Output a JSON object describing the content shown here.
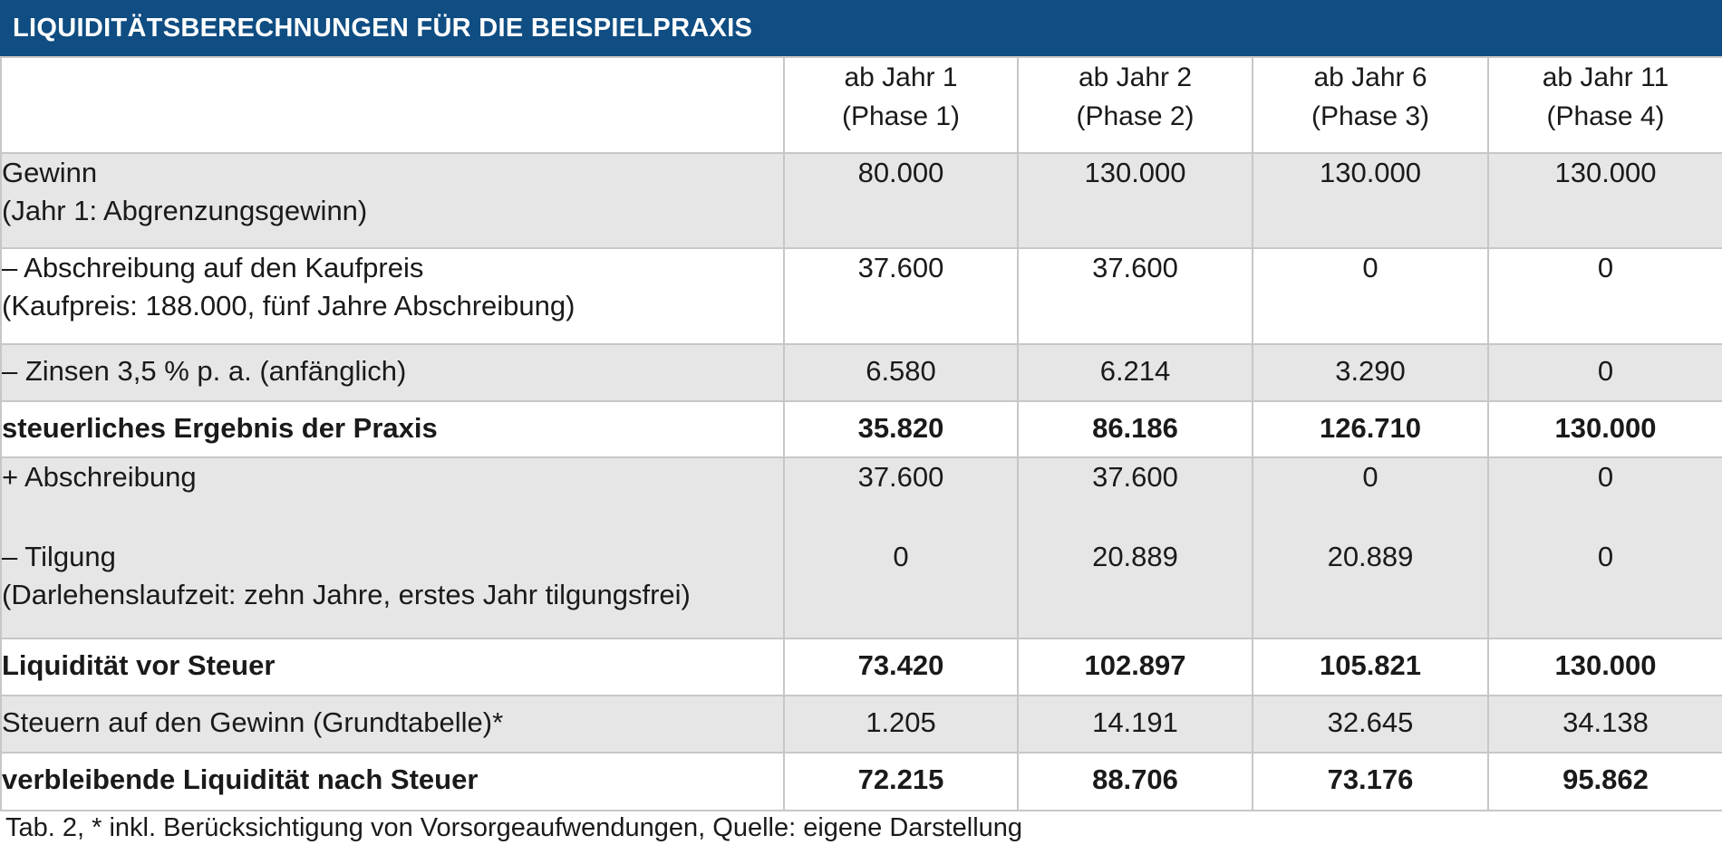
{
  "title": "LIQUIDITÄTSBERECHNUNGEN FÜR DIE BEISPIELPRAXIS",
  "columns": [
    {
      "line1": "ab Jahr 1",
      "line2": "(Phase 1)"
    },
    {
      "line1": "ab Jahr 2",
      "line2": "(Phase 2)"
    },
    {
      "line1": "ab Jahr 6",
      "line2": "(Phase 3)"
    },
    {
      "line1": "ab Jahr 11",
      "line2": "(Phase 4)"
    }
  ],
  "rows": {
    "gewinn": {
      "label": "Gewinn",
      "sublabel": "(Jahr 1: Abgrenzungsgewinn)",
      "values": [
        "80.000",
        "130.000",
        "130.000",
        "130.000"
      ]
    },
    "abschreibung_kaufpreis": {
      "label": "– Abschreibung auf den Kaufpreis",
      "sublabel": "(Kaufpreis: 188.000, fünf Jahre Abschreibung)",
      "values": [
        "37.600",
        "37.600",
        "0",
        "0"
      ]
    },
    "zinsen": {
      "label": "– Zinsen 3,5 % p. a. (anfänglich)",
      "values": [
        "6.580",
        "6.214",
        "3.290",
        "0"
      ]
    },
    "steuerliches_ergebnis": {
      "label": "steuerliches Ergebnis der Praxis",
      "values": [
        "35.820",
        "86.186",
        "126.710",
        "130.000"
      ]
    },
    "plus_abschreibung": {
      "label": "+ Abschreibung",
      "values": [
        "37.600",
        "37.600",
        "0",
        "0"
      ]
    },
    "tilgung": {
      "label": "– Tilgung",
      "sublabel": "(Darlehenslaufzeit: zehn Jahre, erstes Jahr tilgungsfrei)",
      "values": [
        "0",
        "20.889",
        "20.889",
        "0"
      ]
    },
    "liquiditaet_vor_steuer": {
      "label": "Liquidität vor Steuer",
      "values": [
        "73.420",
        "102.897",
        "105.821",
        "130.000"
      ]
    },
    "steuern": {
      "label": "Steuern auf den Gewinn (Grundtabelle)*",
      "values": [
        "1.205",
        "14.191",
        "32.645",
        "34.138"
      ]
    },
    "liquiditaet_nach_steuer": {
      "label": "verbleibende Liquidität nach Steuer",
      "values": [
        "72.215",
        "88.706",
        "73.176",
        "95.862"
      ]
    }
  },
  "caption": "Tab. 2, * inkl. Berücksichtigung von Vorsorgeaufwendungen, Quelle: eigene Darstellung",
  "colors": {
    "title_bar": "#0f4d82",
    "grey_row": "#e6e6e6",
    "grid": "#c7c7c7"
  }
}
